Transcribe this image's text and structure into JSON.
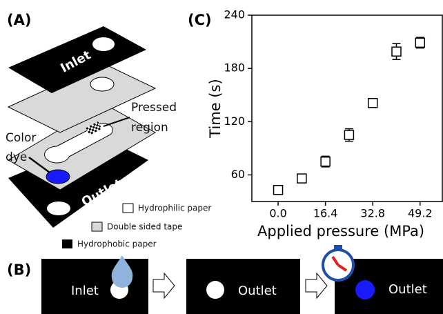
{
  "panel_a": {
    "label": "(A)",
    "inlet": "Inlet",
    "outlet": "Outlet",
    "pressed": [
      "Pressed",
      "region"
    ],
    "dye": [
      "Color",
      "dye"
    ],
    "legend": [
      "Hydrophilic paper",
      "Double sided tape",
      "Hydrophobic paper"
    ]
  },
  "panel_b": {
    "label": "(B)",
    "steps": [
      "Inlet",
      "Outlet",
      "Outlet"
    ]
  },
  "chart_data": {
    "type": "scatter",
    "title": "(C)",
    "xlabel": "Applied pressure (MPa)",
    "ylabel": "Time (s)",
    "x": [
      0,
      8.2,
      16.4,
      24.6,
      32.8,
      41,
      49.2
    ],
    "values": [
      43,
      56,
      75,
      105,
      141,
      199,
      209
    ],
    "errors": [
      4,
      3,
      6,
      7,
      3,
      9,
      6
    ],
    "color": "#000000",
    "xlim": [
      -9.1,
      56.9
    ],
    "ylim": [
      30,
      240
    ],
    "xticks": [
      {
        "value": 0,
        "label": "0.0"
      },
      16.4,
      32.8,
      49.2
    ],
    "yticks": [
      60,
      120,
      180,
      240
    ]
  }
}
